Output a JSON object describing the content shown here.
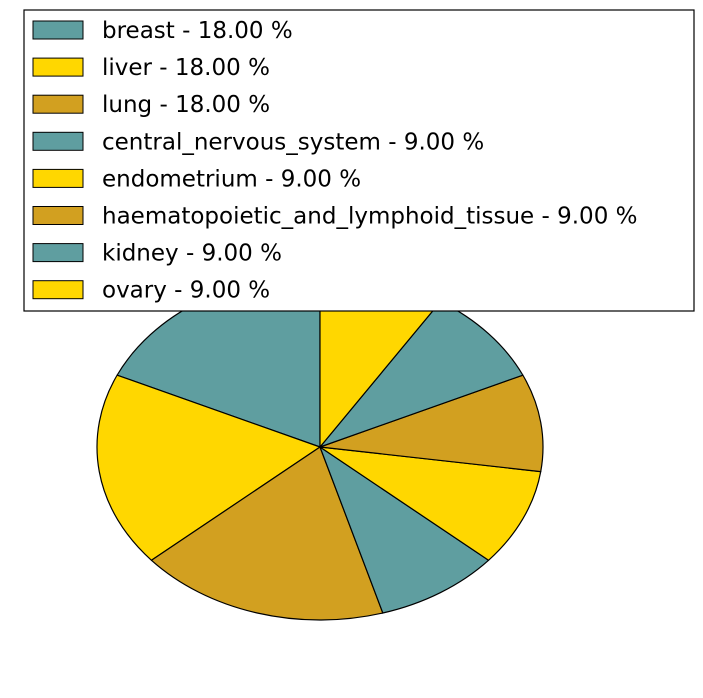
{
  "chart_data": {
    "type": "pie",
    "title": "",
    "slices": [
      {
        "label": "breast",
        "value": 18.0,
        "color": "#5f9ea0",
        "legend": "breast - 18.00 %"
      },
      {
        "label": "liver",
        "value": 18.0,
        "color": "#ffd700",
        "legend": "liver - 18.00 %"
      },
      {
        "label": "lung",
        "value": 18.0,
        "color": "#d2a020",
        "legend": "lung - 18.00 %"
      },
      {
        "label": "central_nervous_system",
        "value": 9.0,
        "color": "#5f9ea0",
        "legend": "central_nervous_system - 9.00 %"
      },
      {
        "label": "endometrium",
        "value": 9.0,
        "color": "#ffd700",
        "legend": "endometrium - 9.00 %"
      },
      {
        "label": "haematopoietic_and_lymphoid_tissue",
        "value": 9.0,
        "color": "#d2a020",
        "legend": "haematopoietic_and_lymphoid_tissue - 9.00 %"
      },
      {
        "label": "kidney",
        "value": 9.0,
        "color": "#5f9ea0",
        "legend": "kidney - 9.00 %"
      },
      {
        "label": "ovary",
        "value": 9.0,
        "color": "#ffd700",
        "legend": "ovary - 9.00 %"
      }
    ],
    "start_angle_deg": 90,
    "direction": "counterclockwise",
    "legend_placement": "top"
  }
}
